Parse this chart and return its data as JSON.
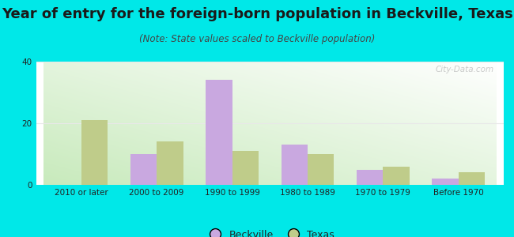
{
  "title": "Year of entry for the foreign-born population in Beckville, Texas",
  "subtitle": "(Note: State values scaled to Beckville population)",
  "categories": [
    "2010 or later",
    "2000 to 2009",
    "1990 to 1999",
    "1980 to 1989",
    "1970 to 1979",
    "Before 1970"
  ],
  "beckville": [
    0,
    10,
    34,
    13,
    5,
    2
  ],
  "texas": [
    21,
    14,
    11,
    10,
    6,
    4
  ],
  "beckville_color": "#c9a8e0",
  "texas_color": "#bfcc8a",
  "bg_outer": "#00e8e8",
  "bg_plot_top_right": "#ffffff",
  "bg_plot_bottom_left": "#c8eabc",
  "ylim": [
    0,
    40
  ],
  "yticks": [
    0,
    20,
    40
  ],
  "bar_width": 0.35,
  "title_fontsize": 13,
  "subtitle_fontsize": 8.5,
  "tick_fontsize": 7.5,
  "legend_fontsize": 9,
  "title_color": "#1a1a1a",
  "subtitle_color": "#444444",
  "tick_color": "#222222",
  "watermark": "City-Data.com",
  "grid_color": "#e8e8e8"
}
